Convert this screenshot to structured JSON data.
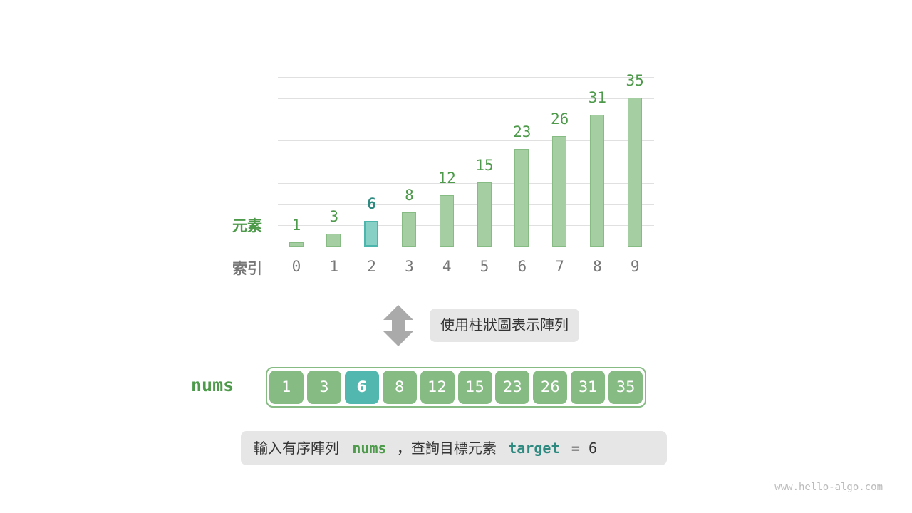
{
  "chart": {
    "value_label": "元素",
    "index_label": "索引",
    "values": [
      1,
      3,
      6,
      8,
      12,
      15,
      23,
      26,
      31,
      35
    ],
    "indices": [
      "0",
      "1",
      "2",
      "3",
      "4",
      "5",
      "6",
      "7",
      "8",
      "9"
    ],
    "highlight_index": 2,
    "colors": {
      "bar": "#a5cfa3",
      "highlight": "#86d0c5",
      "value_text": "#4e9a4b",
      "highlight_text": "#2e8a80"
    }
  },
  "arrow_icon": "double-arrow-vertical-icon",
  "caption": "使用柱狀圖表示陣列",
  "array": {
    "name": "nums",
    "cells": [
      "1",
      "3",
      "6",
      "8",
      "12",
      "15",
      "23",
      "26",
      "31",
      "35"
    ],
    "highlight_index": 2
  },
  "description": {
    "prefix": "輸入有序陣列",
    "nums": "nums",
    "middle": "，查詢目標元素",
    "target": "target",
    "suffix": "= 6"
  },
  "watermark": "www.hello-algo.com"
}
